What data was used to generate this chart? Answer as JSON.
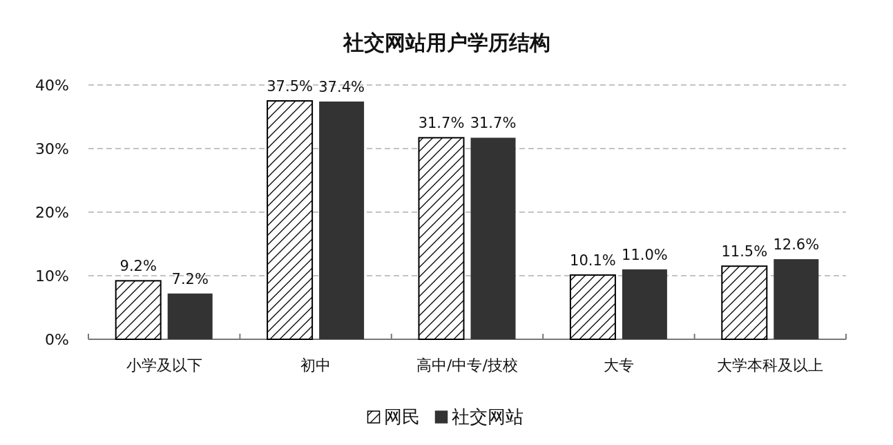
{
  "chart_data": {
    "type": "bar",
    "title": "社交网站用户学历结构",
    "categories": [
      "小学及以下",
      "初中",
      "高中/中专/技校",
      "大专",
      "大学本科及以上"
    ],
    "series": [
      {
        "name": "网民",
        "color": "#000000",
        "values": [
          9.2,
          37.5,
          31.7,
          10.1,
          11.5
        ],
        "value_labels": [
          "9.2%",
          "37.5%",
          "31.7%",
          "10.1%",
          "11.5%"
        ]
      },
      {
        "name": "社交网站",
        "color": "#333333",
        "values": [
          7.2,
          37.4,
          31.7,
          11.0,
          12.6
        ],
        "value_labels": [
          "7.2%",
          "37.4%",
          "31.7%",
          "11.0%",
          "12.6%"
        ]
      }
    ],
    "ylim": [
      0,
      40
    ],
    "yticks": [
      {
        "value": 0,
        "label": "0%"
      },
      {
        "value": 10,
        "label": "10%"
      },
      {
        "value": 20,
        "label": "20%"
      },
      {
        "value": 30,
        "label": "30%"
      },
      {
        "value": 40,
        "label": "40%"
      }
    ],
    "grid": "y",
    "legend": "bottom"
  }
}
